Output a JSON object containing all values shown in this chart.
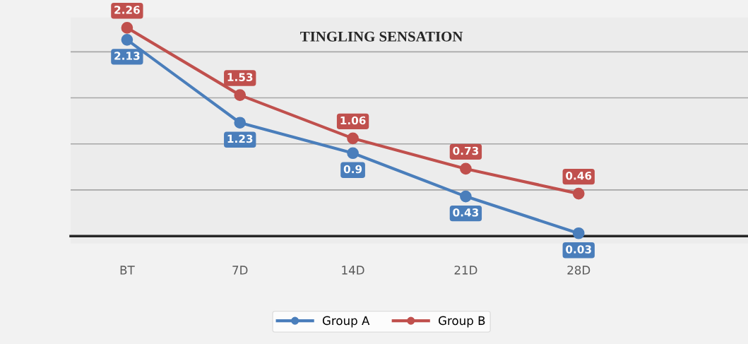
{
  "chart_data": {
    "type": "line",
    "title": "TINGLING SENSATION",
    "categories": [
      "BT",
      "7D",
      "14D",
      "21D",
      "28D",
      null
    ],
    "series": [
      {
        "name": "Group A",
        "color": "#4a7ebb",
        "values": [
          2.13,
          1.23,
          0.9,
          0.43,
          0.03,
          null
        ]
      },
      {
        "name": "Group B",
        "color": "#c0504d",
        "values": [
          2.26,
          1.53,
          1.06,
          0.73,
          0.46,
          null
        ]
      }
    ],
    "tick_labels": "x",
    "grid": "y",
    "legend": "bottom",
    "marker": "circle",
    "line_style": "solid",
    "data_labels": true
  }
}
